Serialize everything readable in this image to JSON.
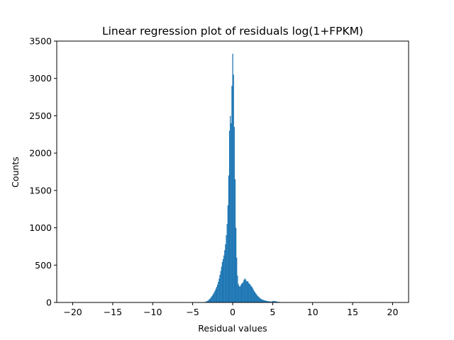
{
  "chart_data": {
    "type": "histogram",
    "title": "Linear regression plot of residuals log(1+FPKM)",
    "xlabel": "Residual values",
    "ylabel": "Counts",
    "xlim": [
      -22,
      22
    ],
    "ylim": [
      0,
      3500
    ],
    "xticks": [
      -20,
      -15,
      -10,
      -5,
      0,
      5,
      10,
      15,
      20
    ],
    "yticks": [
      0,
      500,
      1000,
      1500,
      2000,
      2500,
      3000,
      3500
    ],
    "bar_color": "#1f77b4",
    "grid": false,
    "bins": [
      {
        "x": -3.6,
        "y": 3
      },
      {
        "x": -3.5,
        "y": 6
      },
      {
        "x": -3.4,
        "y": 9
      },
      {
        "x": -3.3,
        "y": 12
      },
      {
        "x": -3.2,
        "y": 18
      },
      {
        "x": -3.1,
        "y": 25
      },
      {
        "x": -3.0,
        "y": 35
      },
      {
        "x": -2.9,
        "y": 45
      },
      {
        "x": -2.8,
        "y": 55
      },
      {
        "x": -2.7,
        "y": 70
      },
      {
        "x": -2.6,
        "y": 85
      },
      {
        "x": -2.5,
        "y": 100
      },
      {
        "x": -2.4,
        "y": 120
      },
      {
        "x": -2.3,
        "y": 140
      },
      {
        "x": -2.2,
        "y": 160
      },
      {
        "x": -2.1,
        "y": 185
      },
      {
        "x": -2.0,
        "y": 210
      },
      {
        "x": -1.9,
        "y": 240
      },
      {
        "x": -1.8,
        "y": 275
      },
      {
        "x": -1.7,
        "y": 320
      },
      {
        "x": -1.6,
        "y": 370
      },
      {
        "x": -1.5,
        "y": 420
      },
      {
        "x": -1.4,
        "y": 480
      },
      {
        "x": -1.3,
        "y": 540
      },
      {
        "x": -1.2,
        "y": 580
      },
      {
        "x": -1.1,
        "y": 630
      },
      {
        "x": -1.0,
        "y": 700
      },
      {
        "x": -0.9,
        "y": 780
      },
      {
        "x": -0.8,
        "y": 900
      },
      {
        "x": -0.7,
        "y": 1050
      },
      {
        "x": -0.6,
        "y": 1300
      },
      {
        "x": -0.5,
        "y": 1700
      },
      {
        "x": -0.4,
        "y": 2300
      },
      {
        "x": -0.3,
        "y": 2500
      },
      {
        "x": -0.2,
        "y": 2400
      },
      {
        "x": -0.1,
        "y": 2900
      },
      {
        "x": 0.0,
        "y": 3330
      },
      {
        "x": 0.1,
        "y": 3050
      },
      {
        "x": 0.2,
        "y": 2350
      },
      {
        "x": 0.3,
        "y": 1650
      },
      {
        "x": 0.4,
        "y": 1000
      },
      {
        "x": 0.5,
        "y": 600
      },
      {
        "x": 0.6,
        "y": 360
      },
      {
        "x": 0.7,
        "y": 250
      },
      {
        "x": 0.8,
        "y": 220
      },
      {
        "x": 0.9,
        "y": 210
      },
      {
        "x": 1.0,
        "y": 230
      },
      {
        "x": 1.1,
        "y": 250
      },
      {
        "x": 1.2,
        "y": 260
      },
      {
        "x": 1.3,
        "y": 270
      },
      {
        "x": 1.4,
        "y": 300
      },
      {
        "x": 1.5,
        "y": 320
      },
      {
        "x": 1.6,
        "y": 310
      },
      {
        "x": 1.7,
        "y": 290
      },
      {
        "x": 1.8,
        "y": 280
      },
      {
        "x": 1.9,
        "y": 285
      },
      {
        "x": 2.0,
        "y": 260
      },
      {
        "x": 2.1,
        "y": 250
      },
      {
        "x": 2.2,
        "y": 240
      },
      {
        "x": 2.3,
        "y": 220
      },
      {
        "x": 2.4,
        "y": 210
      },
      {
        "x": 2.5,
        "y": 190
      },
      {
        "x": 2.6,
        "y": 170
      },
      {
        "x": 2.7,
        "y": 150
      },
      {
        "x": 2.8,
        "y": 135
      },
      {
        "x": 2.9,
        "y": 120
      },
      {
        "x": 3.0,
        "y": 105
      },
      {
        "x": 3.1,
        "y": 90
      },
      {
        "x": 3.2,
        "y": 80
      },
      {
        "x": 3.3,
        "y": 70
      },
      {
        "x": 3.4,
        "y": 60
      },
      {
        "x": 3.5,
        "y": 50
      },
      {
        "x": 3.6,
        "y": 45
      },
      {
        "x": 3.7,
        "y": 40
      },
      {
        "x": 3.8,
        "y": 35
      },
      {
        "x": 3.9,
        "y": 30
      },
      {
        "x": 4.0,
        "y": 28
      },
      {
        "x": 4.1,
        "y": 25
      },
      {
        "x": 4.2,
        "y": 22
      },
      {
        "x": 4.3,
        "y": 20
      },
      {
        "x": 4.4,
        "y": 18
      },
      {
        "x": 4.5,
        "y": 16
      },
      {
        "x": 4.6,
        "y": 14
      },
      {
        "x": 4.7,
        "y": 13
      },
      {
        "x": 4.8,
        "y": 12
      },
      {
        "x": 4.9,
        "y": 12
      },
      {
        "x": 5.0,
        "y": 15
      },
      {
        "x": 5.1,
        "y": 18
      },
      {
        "x": 5.2,
        "y": 20
      },
      {
        "x": 5.3,
        "y": 18
      },
      {
        "x": 5.4,
        "y": 15
      },
      {
        "x": 5.5,
        "y": 12
      },
      {
        "x": 5.6,
        "y": 10
      },
      {
        "x": 5.7,
        "y": 8
      },
      {
        "x": 5.8,
        "y": 7
      },
      {
        "x": 5.9,
        "y": 6
      },
      {
        "x": 6.0,
        "y": 5
      },
      {
        "x": 6.1,
        "y": 4
      },
      {
        "x": 6.2,
        "y": 3
      },
      {
        "x": 6.3,
        "y": 2
      },
      {
        "x": 6.4,
        "y": 2
      },
      {
        "x": 6.5,
        "y": 1
      },
      {
        "x": 7.0,
        "y": 1
      },
      {
        "x": 7.5,
        "y": 1
      }
    ],
    "bin_width": 0.1
  }
}
